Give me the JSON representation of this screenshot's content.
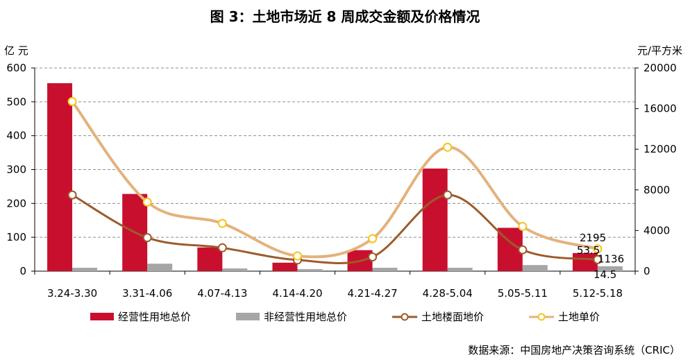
{
  "title": "图 3：土地市场近 8 周成交金额及价格情况",
  "left_unit": "亿  元",
  "right_unit": "元/平方米",
  "source": "数据来源：中国房地产决策咨询系统（CRIC）",
  "colors": {
    "operating_bar": "#c8102e",
    "non_operating_bar": "#a6a6a6",
    "floor_price_line": "#9c5b2a",
    "unit_price_line": "#e3b27d",
    "unit_price_marker": "#f5c518"
  },
  "chart_data": {
    "type": "bar",
    "categories": [
      "3.24-3.30",
      "3.31-4.06",
      "4.07-4.13",
      "4.14-4.20",
      "4.21-4.27",
      "4.28-5.04",
      "5.05-5.11",
      "5.12-5.18"
    ],
    "y_left": {
      "ylim": [
        0,
        600
      ],
      "ticks": [
        "0",
        "100",
        "200",
        "300",
        "400",
        "500",
        "600"
      ]
    },
    "y_right": {
      "ylim": [
        0,
        20000
      ],
      "ticks": [
        "0",
        "4000",
        "8000",
        "12000",
        "16000",
        "20000"
      ]
    },
    "grid": "dashed horizontal",
    "legend_position": "bottom",
    "series": [
      {
        "name": "经营性用地总价",
        "type": "bar",
        "axis": "left",
        "values": [
          555,
          228,
          70,
          25,
          62,
          303,
          128,
          53.5
        ]
      },
      {
        "name": "非经营性用地总价",
        "type": "bar",
        "axis": "left",
        "values": [
          10,
          22,
          8,
          6,
          10,
          10,
          18,
          14.5
        ]
      },
      {
        "name": "土地楼面地价",
        "type": "line",
        "axis": "right",
        "values": [
          7500,
          3300,
          2300,
          1100,
          1400,
          7500,
          2100,
          1136
        ]
      },
      {
        "name": "土地单价",
        "type": "line",
        "axis": "right",
        "values": [
          16700,
          6800,
          4700,
          1500,
          3200,
          12200,
          4400,
          2195
        ]
      }
    ],
    "data_labels": [
      {
        "series": "土地单价",
        "index": 7,
        "text": "2195"
      },
      {
        "series": "经营性用地总价",
        "index": 7,
        "text": "53.5"
      },
      {
        "series": "土地楼面地价",
        "index": 7,
        "text": "1136"
      },
      {
        "series": "非经营性用地总价",
        "index": 7,
        "text": "14.5"
      }
    ]
  }
}
